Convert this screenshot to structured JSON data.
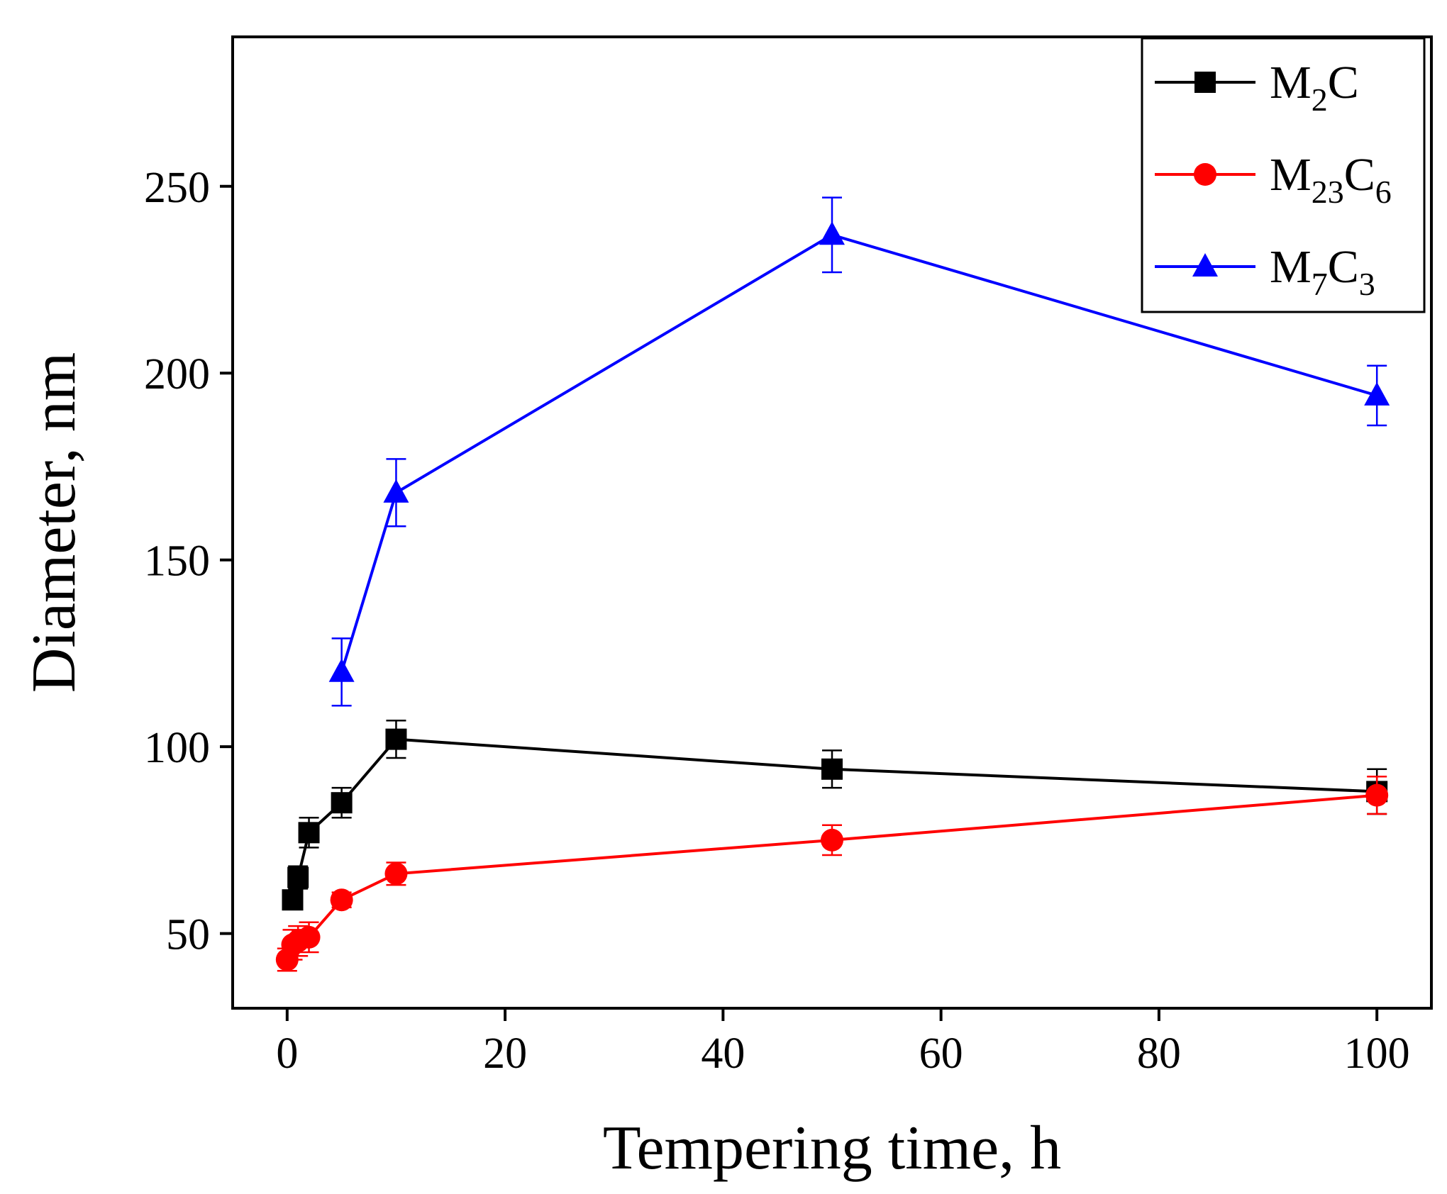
{
  "chart_data": {
    "type": "line",
    "title": "",
    "xlabel": "Tempering time, h",
    "ylabel": "Diameter, nm",
    "xlim": [
      -5,
      105
    ],
    "ylim": [
      30,
      290
    ],
    "xticks": [
      0,
      20,
      40,
      60,
      80,
      100
    ],
    "yticks": [
      50,
      100,
      150,
      200,
      250
    ],
    "legend_position": "top-right",
    "series": [
      {
        "name": "M2C",
        "legend_base": "M",
        "legend_sub1": "2",
        "legend_mid": "C",
        "legend_sub2": "",
        "color": "#000000",
        "marker": "square",
        "x": [
          0.5,
          1,
          2,
          5,
          10,
          50,
          100
        ],
        "y": [
          59,
          65,
          77,
          85,
          102,
          94,
          88
        ],
        "err": [
          2,
          3,
          4,
          4,
          5,
          5,
          6
        ]
      },
      {
        "name": "M23C6",
        "legend_base": "M",
        "legend_sub1": "23",
        "legend_mid": "C",
        "legend_sub2": "6",
        "color": "#ff0000",
        "marker": "circle",
        "x": [
          0,
          0.5,
          1,
          2,
          5,
          10,
          50,
          100
        ],
        "y": [
          43,
          47,
          48,
          49,
          59,
          66,
          75,
          87
        ],
        "err": [
          3,
          4,
          4,
          4,
          2,
          3,
          4,
          5
        ]
      },
      {
        "name": "M7C3",
        "legend_base": "M",
        "legend_sub1": "7",
        "legend_mid": "C",
        "legend_sub2": "3",
        "color": "#0000ff",
        "marker": "triangle",
        "x": [
          5,
          10,
          50,
          100
        ],
        "y": [
          120,
          168,
          237,
          194
        ],
        "err": [
          9,
          9,
          10,
          8
        ]
      }
    ]
  }
}
